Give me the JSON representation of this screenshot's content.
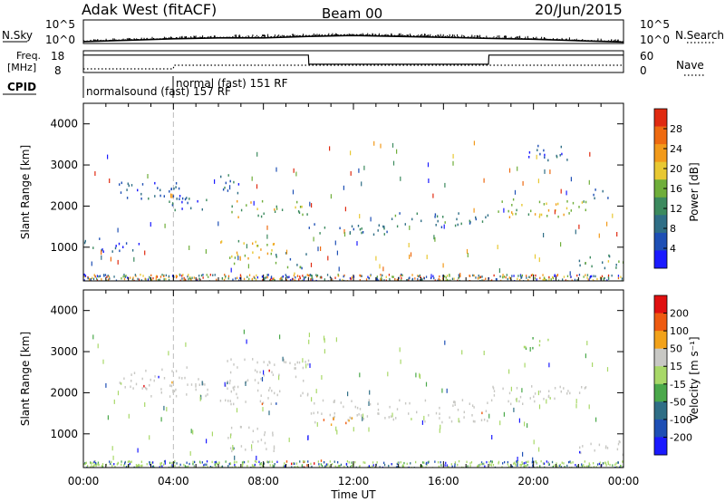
{
  "header": {
    "station": "Adak West (fitACF)",
    "beam": "Beam 00",
    "date": "20/Jun/2015"
  },
  "panel_labels": {
    "nsky": "N.Sky",
    "nsearch": "N.Search",
    "freq_top": "Freq.",
    "freq_unit": "[MHz]",
    "nave": "Nave",
    "cpid": "CPID"
  },
  "noise_panel": {
    "left_ticks": [
      "10^5",
      "10^0"
    ],
    "right_ticks": [
      "10^5",
      "10^0"
    ]
  },
  "freq_panel": {
    "left_ticks": [
      "18",
      "8"
    ],
    "right_ticks": [
      "60",
      "0"
    ]
  },
  "cpid_labels": [
    {
      "text": "normalsound (fast) 157 RF",
      "start_hour": 0
    },
    {
      "text": "normal (fast) 151 RF",
      "start_hour": 4
    }
  ],
  "colors": {
    "power": [
      "#1a1aff",
      "#1e4fb5",
      "#2f6e86",
      "#3c8a5e",
      "#6fae3a",
      "#e8c832",
      "#f29a1a",
      "#ee6a10",
      "#e02a10"
    ],
    "velocity": [
      "#e01010",
      "#ee5a10",
      "#f2a21a",
      "#c8c8c4",
      "#a8d868",
      "#4aa84a",
      "#2f6e86",
      "#1e4fb5",
      "#1a1aff"
    ],
    "ground_scatter": "#c8c8c4"
  },
  "chart_data": [
    {
      "type": "line",
      "title": "",
      "description_series": [
        {
          "name": "N.Sky",
          "x": [
            0,
            2,
            4,
            6,
            8,
            10,
            12,
            14,
            16,
            18,
            20,
            22,
            24
          ],
          "log10_values": [
            0.4,
            0.7,
            1.0,
            1.2,
            1.2,
            1.5,
            1.7,
            1.5,
            1.3,
            1.1,
            0.9,
            0.6,
            0.3
          ]
        },
        {
          "name": "N.Search",
          "x": [
            0,
            2,
            4,
            6,
            8,
            10,
            12,
            14,
            16,
            18,
            20,
            22,
            24
          ],
          "log10_values": [
            0.5,
            0.8,
            1.1,
            1.3,
            1.4,
            1.7,
            1.9,
            1.7,
            1.5,
            1.2,
            1.0,
            0.7,
            0.4
          ]
        }
      ],
      "ylim_log10": [
        0,
        5
      ]
    },
    {
      "type": "line",
      "series": [
        {
          "name": "Freq.",
          "x": [
            0,
            0.05,
            4.0,
            10.0,
            10.02,
            18.0,
            18.02,
            24
          ],
          "values": [
            16,
            16,
            16,
            16,
            11.8,
            11.8,
            16,
            16
          ]
        },
        {
          "name": "Nave",
          "x": [
            0,
            4,
            4.02,
            24
          ],
          "values": [
            10,
            10,
            20,
            20
          ]
        }
      ],
      "ylim_left": [
        8,
        18
      ],
      "ylim_right": [
        0,
        60
      ]
    },
    {
      "type": "heatmap",
      "title": "Power",
      "xlabel": "Time UT",
      "ylabel": "Slant Range [km]",
      "xlim_hours": [
        0,
        24
      ],
      "ylim": [
        180,
        4500
      ],
      "yticks": [
        1000,
        2000,
        3000,
        4000
      ],
      "colorbar_label": "Power [dB]",
      "colorbar_ticks": [
        4,
        8,
        12,
        16,
        20,
        24,
        28
      ],
      "colorbar_range": [
        0,
        30
      ],
      "echo_regions": [
        {
          "t0": 1.5,
          "t1": 4.5,
          "r0": 2100,
          "r1": 2600,
          "power": 6
        },
        {
          "t0": 3.0,
          "t1": 5.5,
          "r0": 1900,
          "r1": 2300,
          "power": 7
        },
        {
          "t0": 6.0,
          "t1": 7.0,
          "r0": 2300,
          "r1": 2850,
          "power": 8
        },
        {
          "t0": 6.5,
          "t1": 10.0,
          "r0": 1750,
          "r1": 2150,
          "power": 16
        },
        {
          "t0": 6.0,
          "t1": 8.5,
          "r0": 600,
          "r1": 1200,
          "power": 18
        },
        {
          "t0": 0.0,
          "t1": 2.5,
          "r0": 900,
          "r1": 1250,
          "power": 6
        },
        {
          "t0": 8.5,
          "t1": 10.0,
          "r0": 500,
          "r1": 900,
          "power": 10
        },
        {
          "t0": 9.0,
          "t1": 11.0,
          "r0": 200,
          "r1": 400,
          "power": 20
        },
        {
          "t0": 10.0,
          "t1": 14.0,
          "r0": 1300,
          "r1": 1600,
          "power": 8
        },
        {
          "t0": 13.5,
          "t1": 18.0,
          "r0": 1500,
          "r1": 1850,
          "power": 10
        },
        {
          "t0": 18.0,
          "t1": 22.5,
          "r0": 1750,
          "r1": 2200,
          "power": 17
        },
        {
          "t0": 19.5,
          "t1": 21.5,
          "r0": 3100,
          "r1": 3500,
          "power": 6
        },
        {
          "t0": 22.0,
          "t1": 24.0,
          "r0": 500,
          "r1": 900,
          "power": 12
        },
        {
          "t0": 22.5,
          "t1": 23.5,
          "r0": 2200,
          "r1": 2450,
          "power": 6
        }
      ]
    },
    {
      "type": "heatmap",
      "title": "Velocity",
      "xlabel": "Time UT",
      "ylabel": "Slant Range [km]",
      "xlim_hours": [
        0,
        24
      ],
      "xticks": [
        "00:00",
        "04:00",
        "08:00",
        "12:00",
        "16:00",
        "20:00",
        "00:00"
      ],
      "ylim": [
        180,
        4500
      ],
      "yticks": [
        1000,
        2000,
        3000,
        4000
      ],
      "colorbar_label": "Velocity [m s^-1]",
      "colorbar_ticks": [
        200,
        100,
        50,
        15,
        -15,
        -50,
        -100,
        -200
      ],
      "echo_regions": [
        {
          "t0": 1.5,
          "t1": 5.5,
          "r0": 1900,
          "r1": 2650,
          "velocity": 0
        },
        {
          "t0": 6.0,
          "t1": 10.0,
          "r0": 1750,
          "r1": 2850,
          "velocity": 0
        },
        {
          "t0": 6.0,
          "t1": 8.5,
          "r0": 600,
          "r1": 1200,
          "velocity": 0
        },
        {
          "t0": 9.0,
          "t1": 11.0,
          "r0": 200,
          "r1": 400,
          "velocity": -150
        },
        {
          "t0": 10.0,
          "t1": 18.0,
          "r0": 1300,
          "r1": 1850,
          "velocity": 0
        },
        {
          "t0": 18.0,
          "t1": 22.5,
          "r0": 1750,
          "r1": 2200,
          "velocity": 0
        },
        {
          "t0": 10.0,
          "t1": 12.0,
          "r0": 1250,
          "r1": 1450,
          "velocity": -60
        },
        {
          "t0": 22.0,
          "t1": 24.0,
          "r0": 500,
          "r1": 900,
          "velocity": 0
        },
        {
          "t0": 19.5,
          "t1": 21.0,
          "r0": 3100,
          "r1": 3400,
          "velocity": 30
        },
        {
          "t0": 0.0,
          "t1": 24.0,
          "r0": 180,
          "r1": 260,
          "velocity": 40
        }
      ]
    }
  ],
  "time_ticks": [
    "00:00",
    "04:00",
    "08:00",
    "12:00",
    "16:00",
    "20:00",
    "00:00"
  ],
  "range_ticks": [
    "1000",
    "2000",
    "3000",
    "4000"
  ],
  "axis_labels": {
    "x": "Time UT",
    "y_power": "Slant Range [km]",
    "y_velocity": "Slant Range [km]",
    "power_cbar": "Power [dB]",
    "velocity_cbar": "Velocity [m s⁻¹]"
  },
  "power_cbar_ticks": [
    "28",
    "24",
    "20",
    "16",
    "12",
    "8",
    "4"
  ],
  "velocity_cbar_ticks": [
    "200",
    "100",
    "50",
    "15",
    "-15",
    "-50",
    "-100",
    "-200"
  ]
}
